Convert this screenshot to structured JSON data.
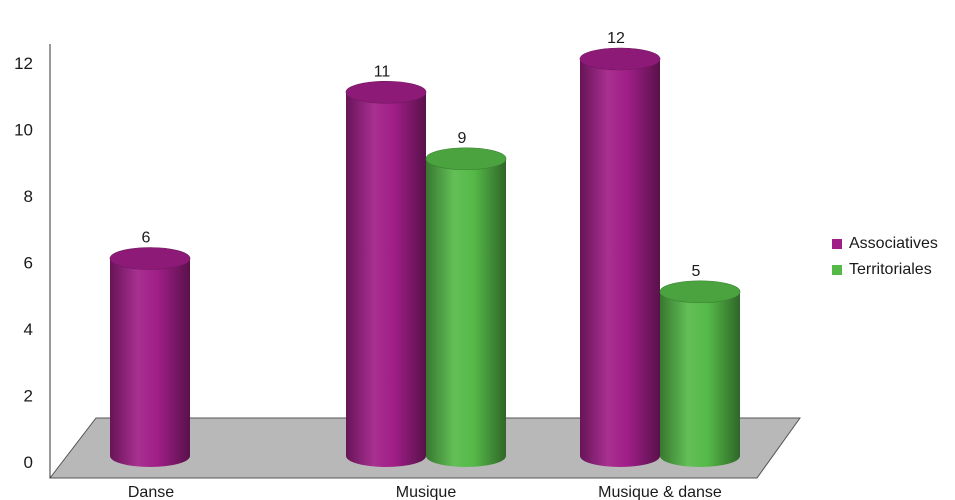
{
  "chart_data": {
    "type": "bar",
    "title": "",
    "xlabel": "",
    "ylabel": "",
    "categories": [
      "Danse",
      "Musique",
      "Musique & danse"
    ],
    "series": [
      {
        "name": "Associatives",
        "values": [
          6,
          11,
          12
        ],
        "color": "#a01e87"
      },
      {
        "name": "Territoriales",
        "values": [
          null,
          9,
          5
        ],
        "color": "#55b948"
      }
    ],
    "ylim": [
      0,
      12
    ],
    "yticks": [
      "0",
      "2",
      "4",
      "6",
      "8",
      "10",
      "12"
    ],
    "data_labels": [
      [
        "6",
        "11",
        "12"
      ],
      [
        "",
        "9",
        "5"
      ]
    ],
    "floor_color": "#b8b8b8",
    "grid": false,
    "legend_position": "right",
    "style": "3d-cylinder"
  },
  "legend": {
    "items": [
      {
        "label": "Associatives",
        "color": "#a01e87"
      },
      {
        "label": "Territoriales",
        "color": "#55b948"
      }
    ]
  }
}
